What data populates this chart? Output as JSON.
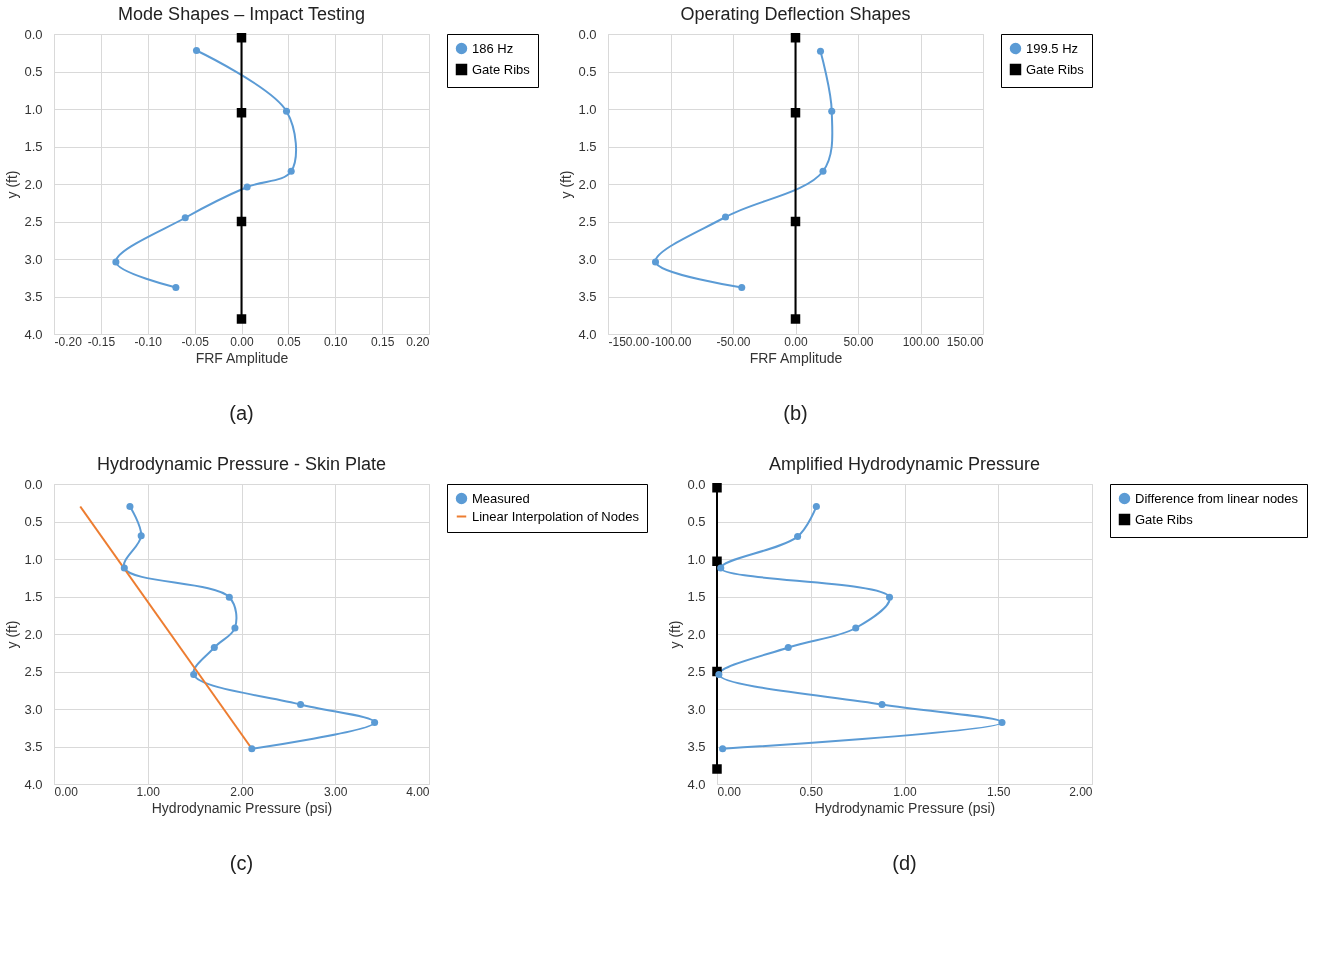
{
  "chart_data": [
    {
      "type": "line",
      "title": "Mode Shapes – Impact Testing",
      "xlabel": "FRF Amplitude",
      "ylabel": "y (ft)",
      "annotations": [
        "(a)"
      ],
      "legend": "right",
      "grid": true,
      "xlim": [
        -0.2,
        0.2
      ],
      "xticks": [
        {
          "value": -0.2,
          "label": "-0.20"
        },
        {
          "value": -0.15,
          "label": "-0.15"
        },
        {
          "value": -0.1,
          "label": "-0.10"
        },
        {
          "value": -0.05,
          "label": "-0.05"
        },
        {
          "value": 0,
          "label": "0.00"
        },
        {
          "value": 0.05,
          "label": "0.05"
        },
        {
          "value": 0.1,
          "label": "0.10"
        },
        {
          "value": 0.15,
          "label": "0.15"
        },
        {
          "value": 0.2,
          "label": "0.20"
        }
      ],
      "ylim": [
        4,
        0
      ],
      "yticks": [
        {
          "value": 0,
          "label": "0.0"
        },
        0.5,
        {
          "value": 1,
          "label": "1.0"
        },
        1.5,
        {
          "value": 2,
          "label": "2.0"
        },
        2.5,
        {
          "value": 3,
          "label": "3.0"
        },
        3.5,
        {
          "value": 4,
          "label": "4.0"
        }
      ],
      "series": [
        {
          "name": "186 Hz",
          "color": "#5b9bd5",
          "marker": "circle",
          "x": [
            -0.048,
            0.048,
            0.053,
            0.006,
            -0.06,
            -0.134,
            -0.07
          ],
          "values": [
            0.22,
            1.03,
            1.83,
            2.04,
            2.45,
            3.04,
            3.38
          ]
        },
        {
          "name": "Gate Ribs",
          "color": "#000000",
          "marker": "square",
          "x": [
            0,
            0,
            0,
            0
          ],
          "values": [
            0.05,
            1.05,
            2.5,
            3.8
          ]
        }
      ]
    },
    {
      "type": "line",
      "title": "Operating Deflection Shapes",
      "xlabel": "FRF Amplitude",
      "ylabel": "y (ft)",
      "annotations": [
        "(b)"
      ],
      "legend": "right",
      "grid": true,
      "xlim": [
        -150,
        150
      ],
      "xticks": [
        {
          "value": -150,
          "label": "-150.00"
        },
        {
          "value": -100,
          "label": "-100.00"
        },
        {
          "value": -50,
          "label": "-50.00"
        },
        {
          "value": 0,
          "label": "0.00"
        },
        {
          "value": 50,
          "label": "50.00"
        },
        {
          "value": 100,
          "label": "100.00"
        },
        {
          "value": 150,
          "label": "150.00"
        }
      ],
      "ylim": [
        4,
        0
      ],
      "yticks": [
        {
          "value": 0,
          "label": "0.0"
        },
        0.5,
        {
          "value": 1,
          "label": "1.0"
        },
        1.5,
        {
          "value": 2,
          "label": "2.0"
        },
        2.5,
        {
          "value": 3,
          "label": "3.0"
        },
        3.5,
        {
          "value": 4,
          "label": "4.0"
        }
      ],
      "series": [
        {
          "name": "199.5 Hz",
          "color": "#5b9bd5",
          "marker": "circle",
          "x": [
            20,
            29,
            22,
            -56,
            -112,
            -43
          ],
          "values": [
            0.23,
            1.03,
            1.83,
            2.44,
            3.04,
            3.38
          ]
        },
        {
          "name": "Gate Ribs",
          "color": "#000000",
          "marker": "square",
          "x": [
            0,
            0,
            0,
            0
          ],
          "values": [
            0.05,
            1.05,
            2.5,
            3.8
          ]
        }
      ]
    },
    {
      "type": "line",
      "title": "Hydrodynamic Pressure - Skin Plate",
      "xlabel": "Hydrodynamic Pressure (psi)",
      "ylabel": "y (ft)",
      "annotations": [
        "(c)"
      ],
      "legend": "right",
      "grid": true,
      "xlim": [
        0,
        4
      ],
      "xticks": [
        {
          "value": 0,
          "label": "0.00"
        },
        {
          "value": 1,
          "label": "1.00"
        },
        {
          "value": 2,
          "label": "2.00"
        },
        {
          "value": 3,
          "label": "3.00"
        },
        {
          "value": 4,
          "label": "4.00"
        }
      ],
      "ylim": [
        4,
        0
      ],
      "yticks": [
        {
          "value": 0,
          "label": "0.0"
        },
        0.5,
        {
          "value": 1,
          "label": "1.0"
        },
        1.5,
        {
          "value": 2,
          "label": "2.0"
        },
        2.5,
        {
          "value": 3,
          "label": "3.0"
        },
        3.5,
        {
          "value": 4,
          "label": "4.0"
        }
      ],
      "series": [
        {
          "name": "Measured",
          "color": "#5b9bd5",
          "marker": "circle",
          "x": [
            0.81,
            0.93,
            0.75,
            1.87,
            1.93,
            1.71,
            1.49,
            2.63,
            3.42,
            2.11
          ],
          "values": [
            0.3,
            0.69,
            1.12,
            1.51,
            1.92,
            2.18,
            2.54,
            2.94,
            3.18,
            3.53
          ]
        },
        {
          "name": "Linear Interpolation of Nodes",
          "color": "#ed7d31",
          "marker": "none",
          "x": [
            0.28,
            2.11
          ],
          "values": [
            0.3,
            3.53
          ]
        }
      ]
    },
    {
      "type": "line",
      "title": "Amplified Hydrodynamic Pressure",
      "xlabel": "Hydrodynamic Pressure (psi)",
      "ylabel": "y (ft)",
      "annotations": [
        "(d)"
      ],
      "legend": "right",
      "grid": true,
      "xlim": [
        0,
        2
      ],
      "xticks": [
        {
          "value": 0,
          "label": "0.00"
        },
        {
          "value": 0.5,
          "label": "0.50"
        },
        {
          "value": 1,
          "label": "1.00"
        },
        {
          "value": 1.5,
          "label": "1.50"
        },
        {
          "value": 2,
          "label": "2.00"
        }
      ],
      "ylim": [
        4,
        0
      ],
      "yticks": [
        {
          "value": 0,
          "label": "0.0"
        },
        0.5,
        {
          "value": 1,
          "label": "1.0"
        },
        1.5,
        {
          "value": 2,
          "label": "2.0"
        },
        2.5,
        {
          "value": 3,
          "label": "3.0"
        },
        3.5,
        {
          "value": 4,
          "label": "4.0"
        }
      ],
      "series": [
        {
          "name": "Difference from linear nodes",
          "color": "#5b9bd5",
          "marker": "circle",
          "x": [
            0.53,
            0.43,
            0.02,
            0.92,
            0.74,
            0.38,
            0.01,
            0.88,
            1.52,
            0.03
          ],
          "values": [
            0.3,
            0.7,
            1.12,
            1.51,
            1.92,
            2.18,
            2.54,
            2.94,
            3.18,
            3.53
          ]
        },
        {
          "name": "Gate Ribs",
          "color": "#000000",
          "marker": "square",
          "x": [
            0,
            0,
            0,
            0
          ],
          "values": [
            0.05,
            1.03,
            2.5,
            3.8
          ]
        }
      ]
    }
  ]
}
